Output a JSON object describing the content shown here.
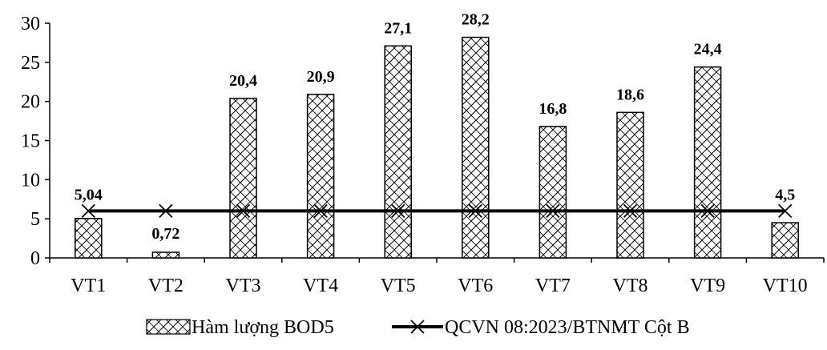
{
  "chart_data": {
    "type": "bar",
    "categories": [
      "VT1",
      "VT2",
      "VT3",
      "VT4",
      "VT5",
      "VT6",
      "VT7",
      "VT8",
      "VT9",
      "VT10"
    ],
    "series": [
      {
        "name": "Hàm lượng BOD5",
        "kind": "bar",
        "values": [
          5.04,
          0.72,
          20.4,
          20.9,
          27.1,
          28.2,
          16.8,
          18.6,
          24.4,
          4.5
        ],
        "labels": [
          "5,04",
          "0,72",
          "20,4",
          "20,9",
          "27,1",
          "28,2",
          "16,8",
          "18,6",
          "24,4",
          "4,5"
        ],
        "pattern": "hatched"
      },
      {
        "name": "QCVN 08:2023/BTNMT Cột B",
        "kind": "line",
        "values": [
          6,
          6,
          6,
          6,
          6,
          6,
          6,
          6,
          6,
          6
        ],
        "marker": "x",
        "color": "#000000"
      }
    ],
    "ylim": [
      0,
      30
    ],
    "yticks": [
      0,
      5,
      10,
      15,
      20,
      25,
      30
    ],
    "ytick_labels": [
      "0",
      "5",
      "10",
      "15",
      "20",
      "25",
      "30"
    ],
    "grid": false,
    "legend_position": "bottom"
  }
}
